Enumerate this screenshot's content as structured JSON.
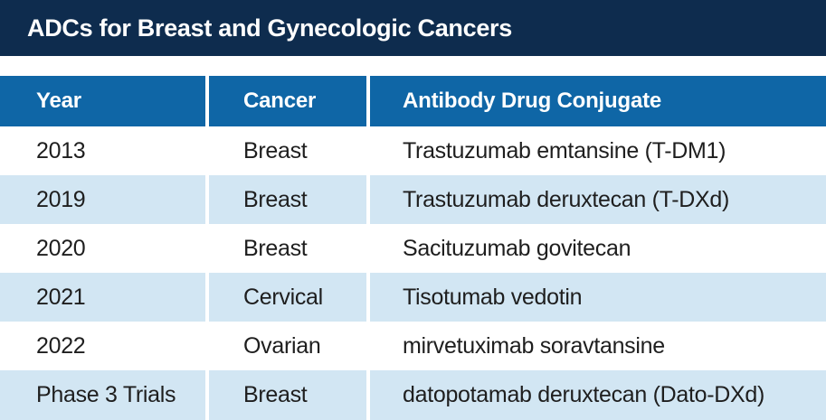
{
  "page_title": "ADCs for Breast and Gynecologic Cancers",
  "colors": {
    "title_bar_navy": "#0e2c4e",
    "header_blue": "#0f66a6",
    "row_alt_light_blue": "#d2e6f3",
    "header_text": "#ffffff",
    "body_text": "#1e1e1e",
    "background": "#ffffff"
  },
  "chart_data": {
    "type": "table",
    "title": "ADCs for Breast and Gynecologic Cancers",
    "columns": [
      "Year",
      "Cancer",
      "Antibody Drug Conjugate"
    ],
    "rows": [
      [
        "2013",
        "Breast",
        "Trastuzumab emtansine (T-DM1)"
      ],
      [
        "2019",
        "Breast",
        "Trastuzumab deruxtecan (T-DXd)"
      ],
      [
        "2020",
        "Breast",
        "Sacituzumab govitecan"
      ],
      [
        "2021",
        "Cervical",
        "Tisotumab vedotin"
      ],
      [
        "2022",
        "Ovarian",
        "mirvetuximab soravtansine"
      ],
      [
        "Phase 3 Trials",
        "Breast",
        "datopotamab deruxtecan (Dato-DXd)"
      ]
    ],
    "layout": {
      "row_striping": "alternating white and light blue, starting white",
      "header_position": "top",
      "column_alignment": "left"
    }
  }
}
